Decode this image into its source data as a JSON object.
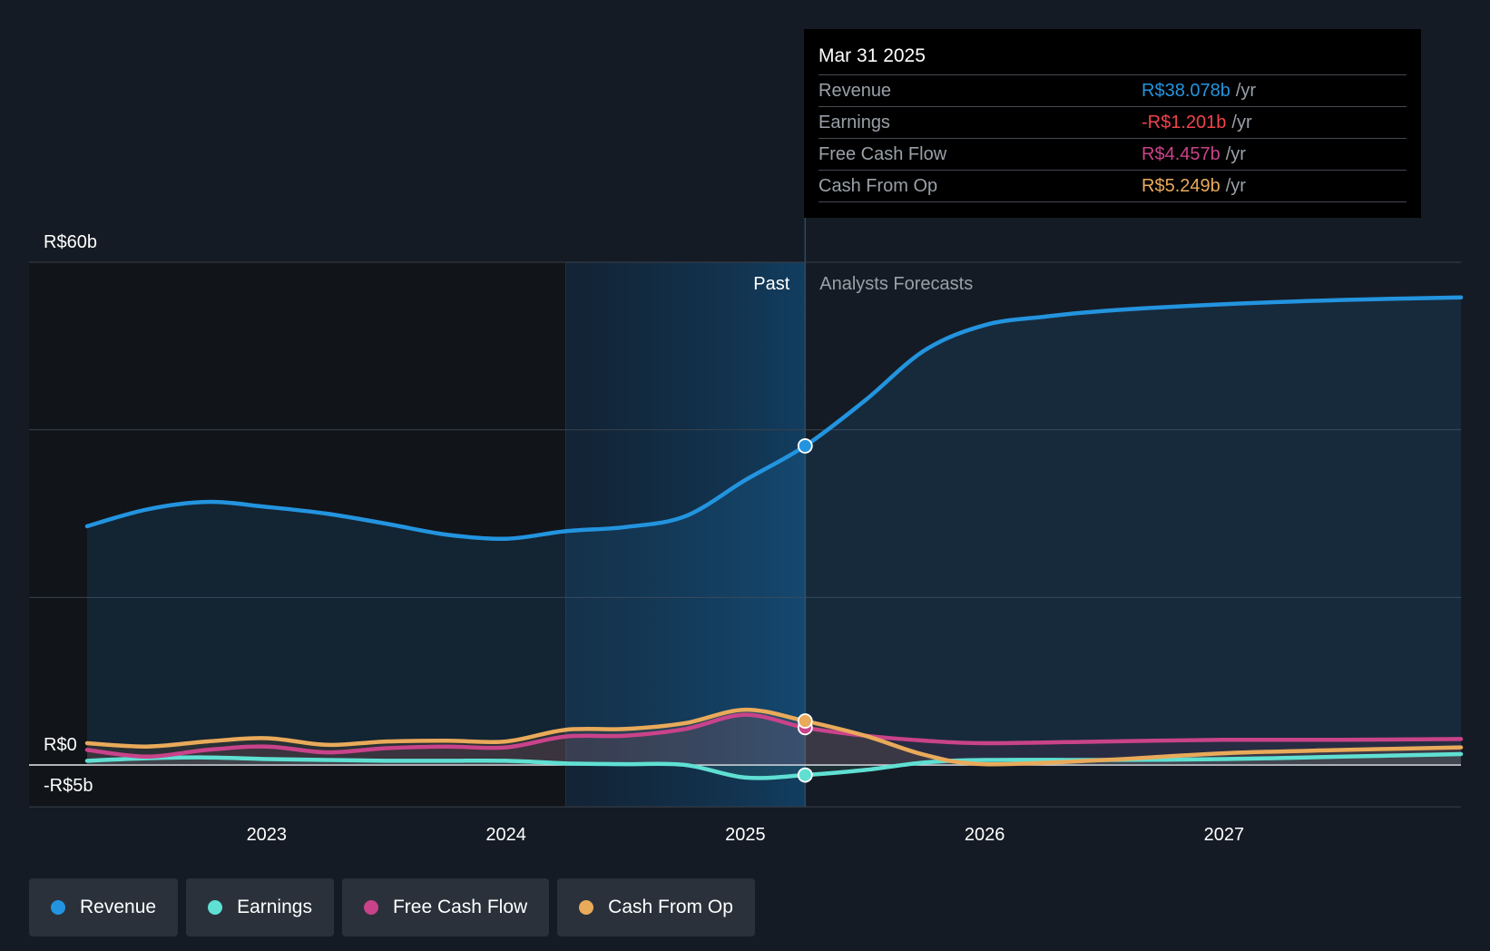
{
  "tooltip": {
    "date": "Mar 31 2025",
    "unit": "/yr",
    "rows": [
      {
        "label": "Revenue",
        "value": "R$38.078b"
      },
      {
        "label": "Earnings",
        "value": "-R$1.201b"
      },
      {
        "label": "Free Cash Flow",
        "value": "R$4.457b"
      },
      {
        "label": "Cash From Op",
        "value": "R$5.249b"
      }
    ]
  },
  "colors": {
    "revenue": "#2394df",
    "earnings": "#5fe0d2",
    "fcf": "#c9438a",
    "cfo": "#e9aa5a",
    "earnings_text": "#f0424b",
    "background": "#151b24"
  },
  "legend": [
    {
      "label": "Revenue",
      "color_key": "revenue"
    },
    {
      "label": "Earnings",
      "color_key": "earnings"
    },
    {
      "label": "Free Cash Flow",
      "color_key": "fcf"
    },
    {
      "label": "Cash From Op",
      "color_key": "cfo"
    }
  ],
  "chart_data": {
    "type": "line",
    "y_unit": "R$ billions",
    "ylim": [
      -5,
      60
    ],
    "y_tick_labels": [
      {
        "value": 60,
        "label": "R$60b"
      },
      {
        "value": 0,
        "label": "R$0"
      },
      {
        "value": -5,
        "label": "-R$5b"
      }
    ],
    "gridlines": [
      60,
      40,
      20,
      0,
      -5
    ],
    "xlim": [
      2022.25,
      2027.99
    ],
    "x_tick_labels": [
      {
        "value": 2023,
        "label": "2023"
      },
      {
        "value": 2024,
        "label": "2024"
      },
      {
        "value": 2025,
        "label": "2025"
      },
      {
        "value": 2026,
        "label": "2026"
      },
      {
        "value": 2027,
        "label": "2027"
      }
    ],
    "past_label": "Past",
    "forecast_label": "Analysts Forecasts",
    "past_highlight_start": 2024.25,
    "divider_x": 2025.25,
    "series": [
      {
        "name": "Revenue",
        "color_key": "revenue",
        "x": [
          2022.25,
          2022.5,
          2022.75,
          2023.0,
          2023.25,
          2023.5,
          2023.75,
          2024.0,
          2024.25,
          2024.5,
          2024.75,
          2025.0,
          2025.25,
          2025.5,
          2025.75,
          2026.0,
          2026.25,
          2026.5,
          2027.0,
          2027.5,
          2027.99
        ],
        "values": [
          28.5,
          30.5,
          31.4,
          30.8,
          30.0,
          28.8,
          27.5,
          27.0,
          27.9,
          28.4,
          29.7,
          34.0,
          38.078,
          43.5,
          49.5,
          52.5,
          53.5,
          54.2,
          55.0,
          55.5,
          55.8
        ]
      },
      {
        "name": "Earnings",
        "color_key": "earnings",
        "x": [
          2022.25,
          2022.5,
          2022.75,
          2023.0,
          2023.25,
          2023.5,
          2023.75,
          2024.0,
          2024.25,
          2024.5,
          2024.75,
          2025.0,
          2025.25,
          2025.5,
          2025.75,
          2026.0,
          2026.5,
          2027.0,
          2027.5,
          2027.99
        ],
        "values": [
          0.5,
          0.8,
          0.9,
          0.7,
          0.6,
          0.5,
          0.5,
          0.5,
          0.2,
          0.1,
          0.0,
          -1.5,
          -1.201,
          -0.6,
          0.3,
          0.6,
          0.6,
          0.7,
          1.0,
          1.3
        ]
      },
      {
        "name": "Free Cash Flow",
        "color_key": "fcf",
        "x": [
          2022.25,
          2022.5,
          2022.75,
          2023.0,
          2023.25,
          2023.5,
          2023.75,
          2024.0,
          2024.25,
          2024.5,
          2024.75,
          2025.0,
          2025.25,
          2025.5,
          2025.75,
          2026.0,
          2026.5,
          2027.0,
          2027.5,
          2027.99
        ],
        "values": [
          1.8,
          1.0,
          1.8,
          2.2,
          1.5,
          2.0,
          2.2,
          2.1,
          3.4,
          3.5,
          4.3,
          6.0,
          4.457,
          3.5,
          2.9,
          2.6,
          2.8,
          3.0,
          3.0,
          3.1
        ]
      },
      {
        "name": "Cash From Op",
        "color_key": "cfo",
        "x": [
          2022.25,
          2022.5,
          2022.75,
          2023.0,
          2023.25,
          2023.5,
          2023.75,
          2024.0,
          2024.25,
          2024.5,
          2024.75,
          2025.0,
          2025.25,
          2025.5,
          2025.75,
          2026.0,
          2026.5,
          2027.0,
          2027.5,
          2027.99
        ],
        "values": [
          2.6,
          2.2,
          2.8,
          3.2,
          2.4,
          2.8,
          2.9,
          2.8,
          4.2,
          4.3,
          5.0,
          6.6,
          5.249,
          3.5,
          1.2,
          0.1,
          0.6,
          1.4,
          1.8,
          2.1
        ]
      }
    ]
  }
}
